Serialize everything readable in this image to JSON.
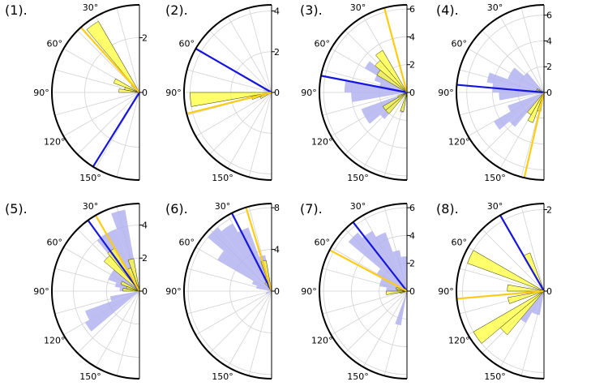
{
  "chart_data": [
    {
      "panel_label": "(1).",
      "type": "polar-histogram",
      "theta_range_deg": [
        0,
        180
      ],
      "rmax": 3.2,
      "r_ticks": [
        0,
        2
      ],
      "angle_ticks": [
        "30°",
        "60°",
        "90°",
        "120°",
        "150°"
      ],
      "bin_width_deg": 10,
      "series": [
        {
          "name": "blue",
          "bars": []
        },
        {
          "name": "yellow",
          "bars": [
            {
              "theta": 35,
              "r": 3.0
            },
            {
              "theta": 45,
              "r": 0.4
            },
            {
              "theta": 65,
              "r": 1.0
            },
            {
              "theta": 75,
              "r": 0.55
            },
            {
              "theta": 85,
              "r": 0.75
            }
          ]
        }
      ],
      "lines": [
        {
          "color": "blue",
          "theta": 148
        },
        {
          "color": "yellow",
          "theta": 42
        }
      ]
    },
    {
      "panel_label": "(2).",
      "type": "polar-histogram",
      "theta_range_deg": [
        0,
        180
      ],
      "rmax": 4.3,
      "r_ticks": [
        0,
        2,
        4
      ],
      "angle_ticks": [
        "60°",
        "90°",
        "150°"
      ],
      "bin_width_deg": 10,
      "series": [
        {
          "name": "blue",
          "bars": [
            {
              "theta": 75,
              "r": 0.4
            },
            {
              "theta": 95,
              "r": 0.4
            }
          ]
        },
        {
          "name": "yellow",
          "bars": [
            {
              "theta": 95,
              "r": 4.0
            },
            {
              "theta": 105,
              "r": 1.0
            },
            {
              "theta": 115,
              "r": 0.6
            }
          ]
        }
      ],
      "lines": [
        {
          "color": "blue",
          "theta": 60
        },
        {
          "color": "yellow",
          "theta": 104
        }
      ]
    },
    {
      "panel_label": "(3).",
      "type": "polar-histogram",
      "theta_range_deg": [
        0,
        180
      ],
      "rmax": 6.3,
      "r_ticks": [
        0,
        2,
        4,
        6
      ],
      "angle_ticks": [
        "30°",
        "60°",
        "90°",
        "120°",
        "150°"
      ],
      "bin_width_deg": 10,
      "series": [
        {
          "name": "blue",
          "bars": [
            {
              "theta": 55,
              "r": 3.5
            },
            {
              "theta": 65,
              "r": 2.5
            },
            {
              "theta": 75,
              "r": 2.0
            },
            {
              "theta": 85,
              "r": 4.5
            },
            {
              "theta": 95,
              "r": 4.0
            },
            {
              "theta": 115,
              "r": 3.5
            },
            {
              "theta": 125,
              "r": 3.5
            },
            {
              "theta": 135,
              "r": 2.5
            },
            {
              "theta": 165,
              "r": 1.5
            }
          ]
        },
        {
          "name": "yellow",
          "bars": [
            {
              "theta": 35,
              "r": 3.5
            },
            {
              "theta": 45,
              "r": 3.0
            },
            {
              "theta": 55,
              "r": 2.5
            },
            {
              "theta": 115,
              "r": 0.7
            },
            {
              "theta": 125,
              "r": 2.0
            },
            {
              "theta": 135,
              "r": 2.0
            },
            {
              "theta": 165,
              "r": 1.4
            }
          ]
        }
      ],
      "lines": [
        {
          "color": "blue",
          "theta": 79
        },
        {
          "color": "yellow",
          "theta": 15
        }
      ]
    },
    {
      "panel_label": "(4).",
      "type": "polar-histogram",
      "theta_range_deg": [
        0,
        180
      ],
      "rmax": 6.8,
      "r_ticks": [
        0,
        2,
        4,
        6
      ],
      "angle_ticks": [
        "30°",
        "60°",
        "90°",
        "120°",
        "150°"
      ],
      "bin_width_deg": 10,
      "series": [
        {
          "name": "blue",
          "bars": [
            {
              "theta": 45,
              "r": 2.0
            },
            {
              "theta": 55,
              "r": 3.0
            },
            {
              "theta": 65,
              "r": 3.0
            },
            {
              "theta": 75,
              "r": 4.5
            },
            {
              "theta": 85,
              "r": 4.0
            },
            {
              "theta": 95,
              "r": 3.5
            },
            {
              "theta": 115,
              "r": 3.0
            },
            {
              "theta": 125,
              "r": 4.5
            },
            {
              "theta": 135,
              "r": 3.5
            }
          ]
        },
        {
          "name": "yellow",
          "bars": [
            {
              "theta": 65,
              "r": 0.6
            },
            {
              "theta": 75,
              "r": 0.6
            },
            {
              "theta": 145,
              "r": 2.0
            },
            {
              "theta": 155,
              "r": 2.5
            },
            {
              "theta": 165,
              "r": 1.5
            }
          ]
        }
      ],
      "lines": [
        {
          "color": "blue",
          "theta": 85
        },
        {
          "color": "yellow",
          "theta": 167
        }
      ]
    },
    {
      "panel_label": "(5).",
      "type": "polar-histogram",
      "theta_range_deg": [
        0,
        180
      ],
      "rmax": 5.3,
      "r_ticks": [
        0,
        2,
        4
      ],
      "angle_ticks": [
        "30°",
        "60°",
        "90°",
        "120°",
        "150°"
      ],
      "bin_width_deg": 10,
      "series": [
        {
          "name": "blue",
          "bars": [
            {
              "theta": 15,
              "r": 5.0
            },
            {
              "theta": 25,
              "r": 4.0
            },
            {
              "theta": 35,
              "r": 4.0
            },
            {
              "theta": 55,
              "r": 2.0
            },
            {
              "theta": 65,
              "r": 2.0
            },
            {
              "theta": 75,
              "r": 1.5
            },
            {
              "theta": 85,
              "r": 1.2
            },
            {
              "theta": 105,
              "r": 1.8
            },
            {
              "theta": 115,
              "r": 3.5
            },
            {
              "theta": 125,
              "r": 3.8
            }
          ]
        },
        {
          "name": "yellow",
          "bars": [
            {
              "theta": 15,
              "r": 2.0
            },
            {
              "theta": 25,
              "r": 1.5
            },
            {
              "theta": 35,
              "r": 3.0
            },
            {
              "theta": 45,
              "r": 2.8
            },
            {
              "theta": 65,
              "r": 1.2
            },
            {
              "theta": 75,
              "r": 0.8
            },
            {
              "theta": 85,
              "r": 1.0
            }
          ]
        }
      ],
      "lines": [
        {
          "color": "blue",
          "theta": 36
        },
        {
          "color": "yellow",
          "theta": 30
        }
      ]
    },
    {
      "panel_label": "(6).",
      "type": "polar-histogram",
      "theta_range_deg": [
        0,
        180
      ],
      "rmax": 8.4,
      "r_ticks": [
        0,
        4,
        8
      ],
      "angle_ticks": [
        "30°",
        "60°",
        "90°",
        "150°"
      ],
      "bin_width_deg": 10,
      "series": [
        {
          "name": "blue",
          "bars": [
            {
              "theta": 15,
              "r": 3.5
            },
            {
              "theta": 25,
              "r": 6.5
            },
            {
              "theta": 35,
              "r": 7.5
            },
            {
              "theta": 45,
              "r": 8.0
            },
            {
              "theta": 55,
              "r": 6.0
            },
            {
              "theta": 65,
              "r": 2.0
            },
            {
              "theta": 75,
              "r": 1.5
            },
            {
              "theta": 105,
              "r": 0.5
            },
            {
              "theta": 115,
              "r": 0.6
            }
          ]
        },
        {
          "name": "yellow",
          "bars": [
            {
              "theta": 15,
              "r": 3.0
            },
            {
              "theta": 25,
              "r": 1.5
            },
            {
              "theta": 35,
              "r": 1.0
            }
          ]
        }
      ],
      "lines": [
        {
          "color": "blue",
          "theta": 27
        },
        {
          "color": "yellow",
          "theta": 17
        }
      ]
    },
    {
      "panel_label": "(7).",
      "type": "polar-histogram",
      "theta_range_deg": [
        0,
        180
      ],
      "rmax": 6.3,
      "r_ticks": [
        0,
        2,
        4,
        6
      ],
      "angle_ticks": [
        "30°",
        "60°",
        "90°",
        "120°",
        "150°"
      ],
      "bin_width_deg": 10,
      "series": [
        {
          "name": "blue",
          "bars": [
            {
              "theta": 5,
              "r": 2.5
            },
            {
              "theta": 15,
              "r": 3.0
            },
            {
              "theta": 25,
              "r": 4.5
            },
            {
              "theta": 35,
              "r": 5.0
            },
            {
              "theta": 45,
              "r": 5.5
            },
            {
              "theta": 55,
              "r": 2.5
            },
            {
              "theta": 65,
              "r": 2.0
            },
            {
              "theta": 75,
              "r": 2.0
            },
            {
              "theta": 85,
              "r": 1.5
            },
            {
              "theta": 95,
              "r": 1.2
            },
            {
              "theta": 165,
              "r": 2.5
            }
          ]
        },
        {
          "name": "yellow",
          "bars": [
            {
              "theta": 75,
              "r": 0.8
            },
            {
              "theta": 85,
              "r": 0.7
            },
            {
              "theta": 95,
              "r": 1.5
            },
            {
              "theta": 105,
              "r": 0.5
            }
          ]
        }
      ],
      "lines": [
        {
          "color": "blue",
          "theta": 38
        },
        {
          "color": "yellow",
          "theta": 62
        }
      ]
    },
    {
      "panel_label": "(8).",
      "type": "polar-histogram",
      "theta_range_deg": [
        0,
        180
      ],
      "rmax": 2.15,
      "r_ticks": [
        0,
        2
      ],
      "angle_ticks": [
        "30°",
        "60°",
        "90°",
        "120°",
        "150°"
      ],
      "bin_width_deg": 10,
      "series": [
        {
          "name": "blue",
          "bars": [
            {
              "theta": 145,
              "r": 0.9
            },
            {
              "theta": 155,
              "r": 0.6
            },
            {
              "theta": 165,
              "r": 0.6
            }
          ]
        },
        {
          "name": "yellow",
          "bars": [
            {
              "theta": 25,
              "r": 1.0
            },
            {
              "theta": 65,
              "r": 2.0
            },
            {
              "theta": 85,
              "r": 0.9
            },
            {
              "theta": 105,
              "r": 0.9
            },
            {
              "theta": 125,
              "r": 2.0
            },
            {
              "theta": 135,
              "r": 1.4
            }
          ]
        }
      ],
      "lines": [
        {
          "color": "blue",
          "theta": 30
        },
        {
          "color": "yellow",
          "theta": 95
        }
      ]
    }
  ],
  "colors": {
    "blue_fill": "#b3b3f0",
    "yellow_fill": "#ffff33",
    "blue_line": "#1515e0",
    "yellow_line": "#ffcc11",
    "grid": "#d2d2d2",
    "outline": "#000000"
  }
}
